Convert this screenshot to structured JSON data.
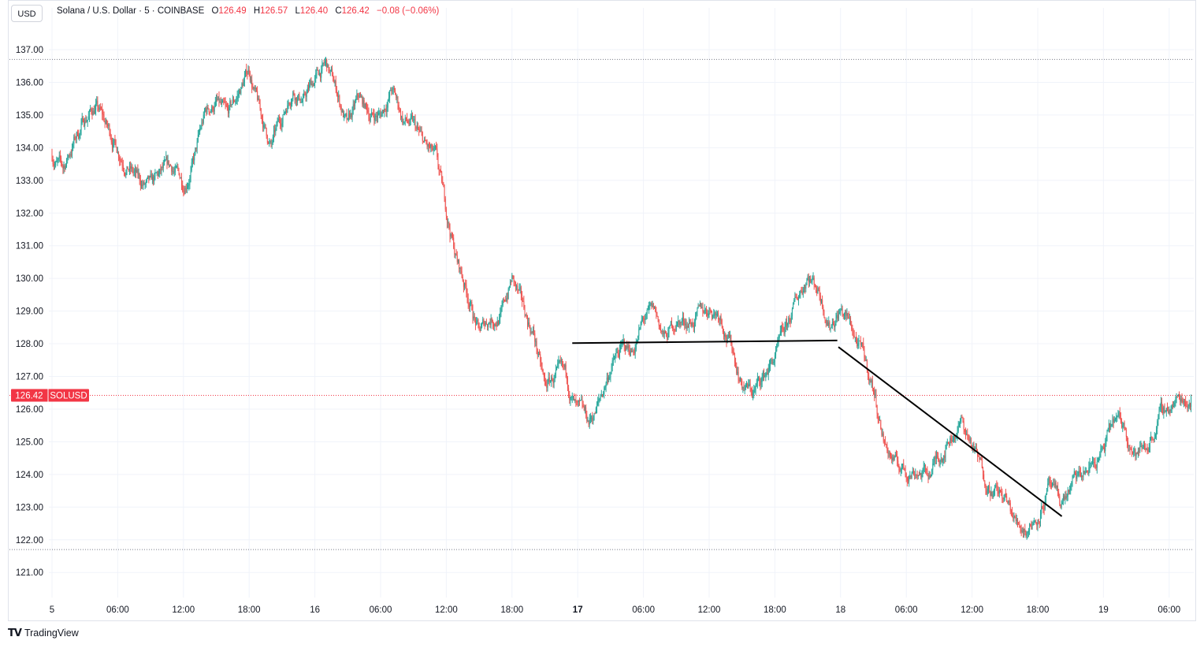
{
  "header": {
    "currency_button": "USD",
    "symbol_line": "Solana / U.S. Dollar · 5 · COINBASE",
    "open_label": "O",
    "open_value": "126.49",
    "high_label": "H",
    "high_value": "126.57",
    "low_label": "L",
    "low_value": "126.40",
    "close_label": "C",
    "close_value": "126.42",
    "change": "−0.08 (−0.06%)"
  },
  "price_label": {
    "value": "126.42",
    "symbol": "SOLUSD"
  },
  "branding": {
    "text": "TradingView",
    "icon": "tradingview-logo-icon"
  },
  "colors": {
    "up": "#26a69a",
    "down": "#ef5350",
    "drawing": "#000000",
    "grid": "#f0f3fa",
    "last_price": "#f23645"
  },
  "chart_data": {
    "type": "candlestick",
    "interval": "5",
    "ylim": [
      120.25,
      138.2
    ],
    "y_ticks": [
      "121.00",
      "122.00",
      "123.00",
      "124.00",
      "125.00",
      "126.00",
      "127.00",
      "128.00",
      "129.00",
      "130.00",
      "131.00",
      "132.00",
      "133.00",
      "134.00",
      "135.00",
      "136.00",
      "137.00"
    ],
    "x_ticks": [
      {
        "label": "5",
        "bold": false
      },
      {
        "label": "06:00",
        "bold": false
      },
      {
        "label": "12:00",
        "bold": false
      },
      {
        "label": "18:00",
        "bold": false
      },
      {
        "label": "16",
        "bold": false
      },
      {
        "label": "06:00",
        "bold": false
      },
      {
        "label": "12:00",
        "bold": false
      },
      {
        "label": "18:00",
        "bold": false
      },
      {
        "label": "17",
        "bold": true
      },
      {
        "label": "06:00",
        "bold": false
      },
      {
        "label": "12:00",
        "bold": false
      },
      {
        "label": "18:00",
        "bold": false
      },
      {
        "label": "18",
        "bold": false
      },
      {
        "label": "06:00",
        "bold": false
      },
      {
        "label": "12:00",
        "bold": false
      },
      {
        "label": "18:00",
        "bold": false
      },
      {
        "label": "19",
        "bold": false
      },
      {
        "label": "06:00",
        "bold": false
      }
    ],
    "x_range_hours": [
      -0.2,
      109.0
    ],
    "high_line": 136.7,
    "low_line": 121.7,
    "last_price": 126.42,
    "price_path": [
      [
        0,
        133.8
      ],
      [
        1,
        133.3
      ],
      [
        2,
        134.2
      ],
      [
        3,
        134.9
      ],
      [
        4,
        135.3
      ],
      [
        5,
        134.6
      ],
      [
        6,
        134.0
      ],
      [
        7,
        133.5
      ],
      [
        8,
        132.9
      ],
      [
        9,
        132.7
      ],
      [
        10,
        133.1
      ],
      [
        11,
        133.3
      ],
      [
        12,
        132.9
      ],
      [
        13,
        133.7
      ],
      [
        14,
        135.0
      ],
      [
        15,
        135.4
      ],
      [
        16,
        134.8
      ],
      [
        17,
        135.6
      ],
      [
        18,
        136.4
      ],
      [
        19,
        135.0
      ],
      [
        20,
        134.0
      ],
      [
        21,
        134.9
      ],
      [
        22,
        135.9
      ],
      [
        23,
        135.5
      ],
      [
        24,
        136.1
      ],
      [
        25,
        136.5
      ],
      [
        26,
        135.7
      ],
      [
        27,
        134.6
      ],
      [
        28,
        135.4
      ],
      [
        29,
        135.0
      ],
      [
        30,
        135.0
      ],
      [
        31,
        135.8
      ],
      [
        32,
        134.9
      ],
      [
        33,
        134.6
      ],
      [
        34,
        134.0
      ],
      [
        35,
        133.6
      ],
      [
        36,
        132.0
      ],
      [
        37,
        130.5
      ],
      [
        38,
        129.5
      ],
      [
        39,
        128.3
      ],
      [
        40,
        128.8
      ],
      [
        41,
        128.9
      ],
      [
        42,
        130.0
      ],
      [
        43,
        129.0
      ],
      [
        44,
        128.3
      ],
      [
        45,
        126.6
      ],
      [
        46,
        127.0
      ],
      [
        47,
        126.8
      ],
      [
        48,
        125.8
      ],
      [
        49,
        125.5
      ],
      [
        50,
        126.2
      ],
      [
        51,
        127.3
      ],
      [
        52,
        127.8
      ],
      [
        53,
        127.8
      ],
      [
        54,
        128.7
      ],
      [
        55,
        128.9
      ],
      [
        56,
        128.1
      ],
      [
        57,
        128.7
      ],
      [
        58,
        128.7
      ],
      [
        59,
        128.8
      ],
      [
        60,
        129.1
      ],
      [
        61,
        129.0
      ],
      [
        62,
        128.0
      ],
      [
        63,
        126.8
      ],
      [
        64,
        126.5
      ],
      [
        65,
        127.0
      ],
      [
        66,
        127.6
      ],
      [
        67,
        128.3
      ],
      [
        68,
        129.3
      ],
      [
        69,
        130.2
      ],
      [
        70,
        129.7
      ],
      [
        71,
        128.7
      ],
      [
        72,
        129.1
      ],
      [
        73,
        128.5
      ],
      [
        74,
        127.6
      ],
      [
        75,
        126.6
      ],
      [
        76,
        125.0
      ],
      [
        77,
        124.3
      ],
      [
        78,
        124.1
      ],
      [
        79,
        124.2
      ],
      [
        80,
        124.0
      ],
      [
        81,
        124.6
      ],
      [
        82,
        125.2
      ],
      [
        83,
        125.6
      ],
      [
        84,
        124.9
      ],
      [
        85,
        124.0
      ],
      [
        86,
        123.6
      ],
      [
        87,
        123.2
      ],
      [
        88,
        122.5
      ],
      [
        89,
        122.4
      ],
      [
        90,
        122.8
      ],
      [
        91,
        123.6
      ],
      [
        92,
        123.0
      ],
      [
        93,
        123.6
      ],
      [
        94,
        123.9
      ],
      [
        95,
        124.3
      ],
      [
        96,
        124.7
      ],
      [
        97,
        125.6
      ],
      [
        98,
        125.4
      ],
      [
        99,
        124.6
      ],
      [
        100,
        124.9
      ],
      [
        101,
        125.7
      ],
      [
        102,
        126.1
      ],
      [
        103,
        126.3
      ],
      [
        104,
        126.4
      ]
    ],
    "drawings": [
      {
        "type": "trend-line",
        "from": [
          47.5,
          128.02
        ],
        "to": [
          71.7,
          128.1
        ]
      },
      {
        "type": "trend-line",
        "from": [
          71.8,
          127.9
        ],
        "to": [
          92.2,
          122.72
        ]
      }
    ]
  }
}
